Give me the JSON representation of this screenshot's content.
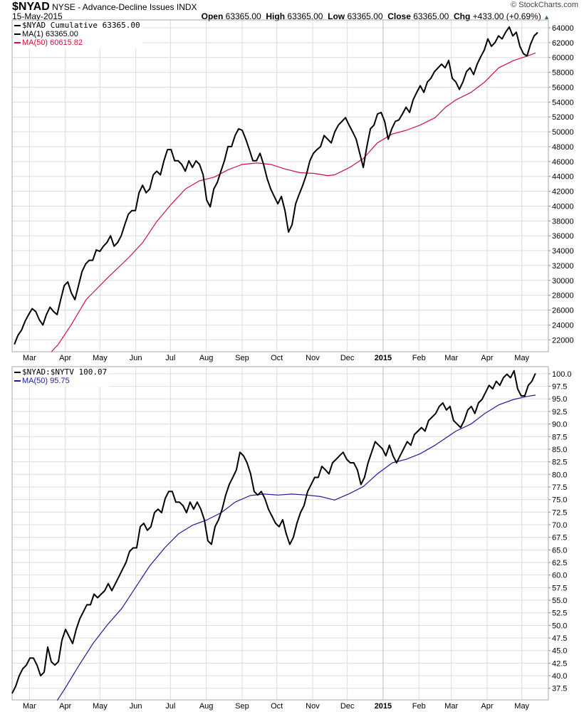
{
  "header": {
    "symbol": "$NYAD",
    "description": "NYSE - Advance-Decline Issues",
    "exchange": "INDX",
    "date": "15-May-2015",
    "copyright": "© StockCharts.com",
    "open_label": "Open",
    "open": "63365.00",
    "high_label": "High",
    "high": "63365.00",
    "low_label": "Low",
    "low": "63365.00",
    "close_label": "Close",
    "close": "63365.00",
    "chg_label": "Chg",
    "chg": "+433.00 (+0.69%)",
    "chg_arrow": "▲"
  },
  "colors": {
    "price": "#000000",
    "ma_top": "#d0103a",
    "ma_bottom": "#1a1a9e",
    "grid": "#dddddd",
    "border": "#aaaaaa"
  },
  "chart_data": [
    {
      "type": "line",
      "title": "$NYAD Cumulative",
      "x_unit": "days since 2014-03-01",
      "xlim": [
        -15,
        449
      ],
      "ylim": [
        20400,
        65050
      ],
      "yticks": [
        22000,
        24000,
        26000,
        28000,
        30000,
        32000,
        34000,
        36000,
        38000,
        40000,
        42000,
        44000,
        46000,
        48000,
        50000,
        52000,
        54000,
        56000,
        58000,
        60000,
        62000,
        64000
      ],
      "xticks": [
        {
          "label": "Mar",
          "day": 0
        },
        {
          "label": "Apr",
          "day": 31
        },
        {
          "label": "May",
          "day": 61
        },
        {
          "label": "Jun",
          "day": 92
        },
        {
          "label": "Jul",
          "day": 122
        },
        {
          "label": "Aug",
          "day": 153
        },
        {
          "label": "Sep",
          "day": 184
        },
        {
          "label": "Oct",
          "day": 214
        },
        {
          "label": "Nov",
          "day": 245
        },
        {
          "label": "Dec",
          "day": 275
        },
        {
          "label": "2015",
          "day": 306,
          "bold": true
        },
        {
          "label": "Feb",
          "day": 337
        },
        {
          "label": "Mar",
          "day": 365
        },
        {
          "label": "Apr",
          "day": 396
        },
        {
          "label": "May",
          "day": 426
        }
      ],
      "legend": [
        {
          "label": "$NYAD Cumulative 63365.00",
          "color": "#000000",
          "mono": true
        },
        {
          "label": "MA(1) 63365.00",
          "color": "#000000"
        },
        {
          "label": "MA(50) 60615.82",
          "color": "#d0103a"
        }
      ],
      "series": [
        {
          "name": "$NYAD Cumulative",
          "color": "#000000",
          "x_start_day": -13,
          "x_step_days": 3.08,
          "values": [
            21400,
            22600,
            23300,
            24500,
            25400,
            26200,
            25800,
            24700,
            24000,
            25400,
            26400,
            25800,
            25400,
            27400,
            29300,
            29800,
            28300,
            27400,
            29300,
            31200,
            32200,
            32700,
            32700,
            34100,
            33900,
            34600,
            35100,
            36000,
            34600,
            35100,
            36000,
            37500,
            38900,
            39400,
            39400,
            41800,
            42800,
            41800,
            42300,
            44200,
            44700,
            44200,
            46100,
            47600,
            47600,
            46100,
            46100,
            45600,
            44700,
            46100,
            45200,
            46100,
            45600,
            44200,
            40800,
            39900,
            42300,
            43200,
            44700,
            46100,
            48000,
            48000,
            49500,
            50400,
            50200,
            49000,
            47600,
            46100,
            46100,
            47100,
            45600,
            43700,
            42300,
            41300,
            40300,
            41300,
            39400,
            36500,
            37500,
            40300,
            41600,
            42800,
            44200,
            46100,
            47100,
            47600,
            48000,
            49500,
            49000,
            48500,
            50000,
            50900,
            51400,
            51900,
            50900,
            50000,
            49000,
            47100,
            45200,
            48000,
            50400,
            50900,
            52400,
            52600,
            51400,
            49000,
            50400,
            51400,
            51600,
            52400,
            53300,
            52600,
            54300,
            55300,
            56200,
            55300,
            56700,
            57200,
            58100,
            58600,
            59100,
            58600,
            59600,
            57200,
            56700,
            55700,
            56700,
            58100,
            58600,
            57700,
            59100,
            60100,
            61000,
            62500,
            61500,
            62000,
            62900,
            62500,
            63400,
            64100,
            62900,
            63400,
            61500,
            60500,
            60200,
            61800,
            62900,
            63365
          ]
        },
        {
          "name": "MA(50)",
          "color": "#d0103a",
          "points": [
            [
              19,
              20400
            ],
            [
              25,
              21400
            ],
            [
              36,
              24000
            ],
            [
              49,
              27400
            ],
            [
              67,
              30250
            ],
            [
              86,
              33100
            ],
            [
              98,
              35100
            ],
            [
              110,
              37900
            ],
            [
              123,
              40300
            ],
            [
              135,
              42300
            ],
            [
              147,
              43400
            ],
            [
              160,
              43900
            ],
            [
              172,
              44900
            ],
            [
              184,
              45600
            ],
            [
              197,
              45800
            ],
            [
              209,
              45600
            ],
            [
              221,
              45000
            ],
            [
              234,
              44500
            ],
            [
              246,
              44400
            ],
            [
              258,
              44100
            ],
            [
              264,
              44200
            ],
            [
              277,
              45200
            ],
            [
              289,
              46400
            ],
            [
              301,
              48500
            ],
            [
              314,
              49700
            ],
            [
              326,
              50200
            ],
            [
              338,
              50900
            ],
            [
              351,
              51900
            ],
            [
              360,
              53300
            ],
            [
              369,
              54300
            ],
            [
              382,
              55300
            ],
            [
              394,
              56700
            ],
            [
              406,
              58600
            ],
            [
              419,
              59600
            ],
            [
              431,
              60200
            ],
            [
              438,
              60615.82
            ]
          ]
        }
      ]
    },
    {
      "type": "line",
      "title": "$NYAD:$NYTV",
      "x_unit": "days since 2014-03-01",
      "xlim": [
        -15,
        449
      ],
      "ylim": [
        35.2,
        101.4
      ],
      "yticks": [
        37.5,
        40.0,
        42.5,
        45.0,
        47.5,
        50.0,
        52.5,
        55.0,
        57.5,
        60.0,
        62.5,
        65.0,
        67.5,
        70.0,
        72.5,
        75.0,
        77.5,
        80.0,
        82.5,
        85.0,
        87.5,
        90.0,
        92.5,
        95.0,
        97.5,
        100.0
      ],
      "xticks": [
        {
          "label": "Mar",
          "day": 0
        },
        {
          "label": "Apr",
          "day": 31
        },
        {
          "label": "May",
          "day": 61
        },
        {
          "label": "Jun",
          "day": 92
        },
        {
          "label": "Jul",
          "day": 122
        },
        {
          "label": "Aug",
          "day": 153
        },
        {
          "label": "Sep",
          "day": 184
        },
        {
          "label": "Oct",
          "day": 214
        },
        {
          "label": "Nov",
          "day": 245
        },
        {
          "label": "Dec",
          "day": 275
        },
        {
          "label": "2015",
          "day": 306,
          "bold": true
        },
        {
          "label": "Feb",
          "day": 337
        },
        {
          "label": "Mar",
          "day": 365
        },
        {
          "label": "Apr",
          "day": 396
        },
        {
          "label": "May",
          "day": 426
        }
      ],
      "legend": [
        {
          "label": "$NYAD:$NYTV 100.07",
          "color": "#000000",
          "mono": true
        },
        {
          "label": "MA(50) 95.75",
          "color": "#1a1a9e"
        }
      ],
      "series": [
        {
          "name": "$NYAD:$NYTV",
          "color": "#000000",
          "x_start_day": -15,
          "x_step_days": 3.08,
          "values": [
            36.5,
            37.9,
            40.0,
            41.4,
            42.1,
            43.5,
            43.5,
            42.1,
            40.0,
            40.7,
            45.7,
            42.8,
            42.1,
            42.8,
            47.1,
            49.2,
            47.8,
            46.4,
            49.2,
            51.3,
            52.7,
            54.1,
            54.1,
            56.2,
            55.5,
            56.2,
            56.9,
            58.3,
            56.9,
            58.3,
            59.7,
            61.1,
            62.5,
            64.7,
            65.4,
            65.4,
            69.6,
            70.3,
            68.9,
            69.6,
            72.4,
            73.1,
            72.4,
            75.2,
            76.6,
            76.6,
            74.5,
            74.5,
            73.8,
            72.4,
            74.5,
            73.1,
            74.5,
            73.1,
            71.0,
            66.8,
            66.1,
            69.6,
            71.0,
            73.1,
            75.9,
            78.0,
            79.4,
            80.9,
            84.4,
            83.7,
            82.3,
            80.1,
            76.6,
            75.9,
            76.6,
            75.2,
            73.1,
            71.7,
            70.3,
            69.6,
            71.0,
            68.2,
            66.1,
            67.5,
            70.3,
            72.4,
            73.8,
            76.6,
            78.0,
            79.4,
            79.4,
            81.6,
            80.9,
            80.1,
            82.3,
            83.0,
            83.7,
            84.4,
            83.0,
            82.3,
            82.3,
            80.9,
            78.0,
            79.4,
            82.3,
            84.4,
            86.5,
            85.8,
            85.1,
            83.7,
            85.8,
            83.7,
            82.3,
            83.7,
            85.1,
            86.5,
            85.8,
            87.9,
            88.6,
            89.3,
            88.6,
            90.7,
            91.4,
            92.1,
            93.5,
            94.2,
            92.8,
            93.5,
            90.7,
            90.0,
            89.3,
            90.7,
            92.8,
            93.5,
            92.1,
            94.2,
            94.9,
            96.3,
            97.7,
            97.0,
            98.5,
            97.7,
            99.2,
            99.9,
            99.2,
            100.6,
            97.0,
            95.6,
            95.6,
            97.7,
            98.5,
            100.07
          ]
        },
        {
          "name": "MA(50)",
          "color": "#1a1a9e",
          "points": [
            [
              24,
              35.1
            ],
            [
              30,
              37.2
            ],
            [
              43,
              42.1
            ],
            [
              55,
              46.4
            ],
            [
              67,
              50.0
            ],
            [
              80,
              53.4
            ],
            [
              92,
              57.6
            ],
            [
              104,
              61.8
            ],
            [
              117,
              65.4
            ],
            [
              129,
              68.2
            ],
            [
              141,
              69.9
            ],
            [
              154,
              71.0
            ],
            [
              166,
              72.4
            ],
            [
              178,
              74.5
            ],
            [
              191,
              75.8
            ],
            [
              203,
              76.1
            ],
            [
              215,
              75.9
            ],
            [
              227,
              76.1
            ],
            [
              240,
              75.9
            ],
            [
              252,
              75.6
            ],
            [
              264,
              74.9
            ],
            [
              277,
              76.2
            ],
            [
              289,
              77.6
            ],
            [
              301,
              80.1
            ],
            [
              314,
              82.3
            ],
            [
              326,
              83.0
            ],
            [
              338,
              84.1
            ],
            [
              351,
              85.8
            ],
            [
              360,
              87.2
            ],
            [
              369,
              88.6
            ],
            [
              382,
              90.0
            ],
            [
              394,
              92.1
            ],
            [
              406,
              93.8
            ],
            [
              419,
              94.9
            ],
            [
              431,
              95.5
            ],
            [
              438,
              95.75
            ]
          ]
        }
      ]
    }
  ]
}
